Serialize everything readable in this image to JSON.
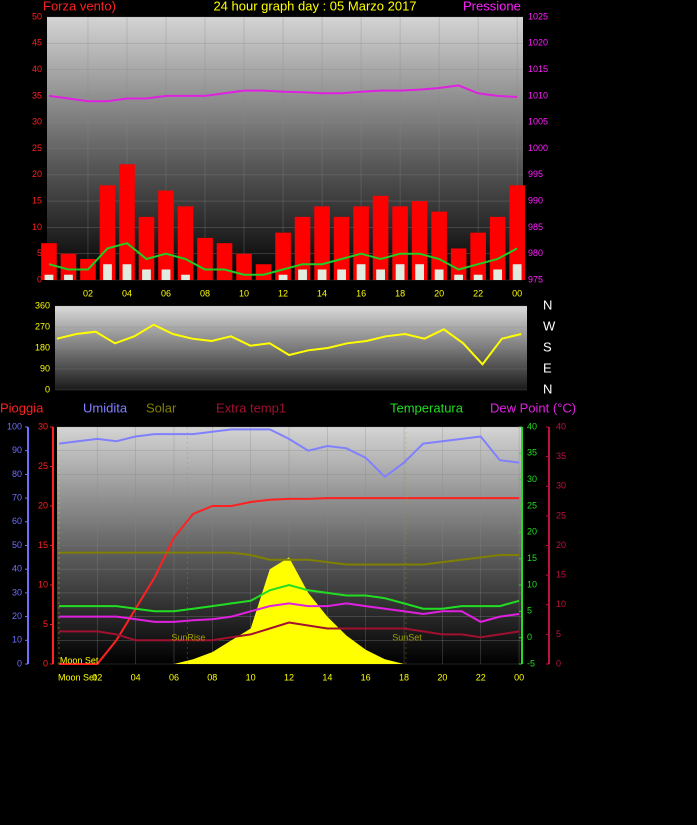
{
  "chart_data": [
    {
      "type": "wind",
      "title": "24 hour graph day : 05 Marzo 2017",
      "ylabel": "Forza vento)",
      "y2label": "Pressione",
      "ycolor": "#ff2020",
      "y2color": "#ff20ff",
      "grid": true,
      "x": [
        0,
        1,
        2,
        3,
        4,
        5,
        6,
        7,
        8,
        9,
        10,
        11,
        12,
        13,
        14,
        15,
        16,
        17,
        18,
        19,
        20,
        21,
        22,
        23,
        24
      ],
      "xlim": [
        -0.1,
        24.3
      ],
      "xticks": [
        {
          "value": 2,
          "label": "02"
        },
        {
          "value": 4,
          "label": "04"
        },
        {
          "value": 6,
          "label": "06"
        },
        {
          "value": 8,
          "label": "08"
        },
        10,
        12,
        14,
        16,
        18,
        20,
        22,
        {
          "value": 24,
          "label": "00"
        }
      ],
      "ylim": [
        0,
        50
      ],
      "yticks": [
        0,
        5,
        10,
        15,
        20,
        25,
        30,
        35,
        40,
        45,
        50
      ],
      "y2lim": [
        975,
        1025
      ],
      "y2ticks": [
        975,
        980,
        985,
        990,
        995,
        1000,
        1005,
        1010,
        1015,
        1020,
        1025
      ],
      "series": [
        {
          "kind": "bar",
          "color": "#ff0000",
          "values": [
            7,
            5,
            4,
            18,
            22,
            12,
            17,
            14,
            8,
            7,
            5,
            3,
            9,
            12,
            14,
            12,
            14,
            16,
            14,
            15,
            13,
            6,
            9,
            12,
            18
          ]
        },
        {
          "kind": "bar",
          "color": "#e0ece0",
          "values": [
            1,
            1,
            0,
            3,
            3,
            2,
            2,
            1,
            0,
            0,
            0,
            0,
            1,
            2,
            2,
            2,
            3,
            2,
            3,
            3,
            2,
            1,
            1,
            2,
            3
          ]
        },
        {
          "kind": "line",
          "color": "#22cc22",
          "values": [
            3,
            2,
            2,
            6,
            7,
            4,
            5,
            4,
            2,
            2,
            1,
            1,
            2,
            3,
            3,
            4,
            5,
            4,
            5,
            5,
            4,
            2,
            3,
            4,
            6
          ]
        },
        {
          "kind": "line",
          "color": "#e020e0",
          "axis": "y2",
          "values": [
            1010,
            1009.5,
            1009,
            1009,
            1009.5,
            1009.5,
            1010,
            1010,
            1010,
            1010.5,
            1011,
            1011,
            1010.8,
            1010.7,
            1010.5,
            1010.5,
            1010.8,
            1011,
            1011,
            1011.2,
            1011.5,
            1012,
            1010.5,
            1010,
            1009.8
          ]
        }
      ]
    },
    {
      "type": "direction",
      "ycolor": "#ffff00",
      "y2color": "#ffffff",
      "grid": true,
      "x": [
        0,
        1,
        2,
        3,
        4,
        5,
        6,
        7,
        8,
        9,
        10,
        11,
        12,
        13,
        14,
        15,
        16,
        17,
        18,
        19,
        20,
        21,
        22,
        23,
        24
      ],
      "xlim": [
        -0.1,
        24.3
      ],
      "ylim": [
        0,
        360
      ],
      "yticks": [
        0,
        90,
        180,
        270,
        360
      ],
      "y2ticks": [
        {
          "value": 0,
          "label": "N"
        },
        {
          "value": 90,
          "label": "E"
        },
        {
          "value": 180,
          "label": "S"
        },
        {
          "value": 270,
          "label": "W"
        },
        {
          "value": 360,
          "label": "N"
        }
      ],
      "series": [
        {
          "kind": "line",
          "color": "#ffff00",
          "values": [
            220,
            240,
            250,
            200,
            230,
            280,
            240,
            220,
            210,
            230,
            190,
            200,
            150,
            170,
            180,
            200,
            210,
            230,
            240,
            220,
            260,
            200,
            110,
            220,
            240
          ]
        }
      ]
    },
    {
      "type": "weather",
      "xlabel": "Moon Set",
      "grid": true,
      "x": [
        0,
        1,
        2,
        3,
        4,
        5,
        6,
        7,
        8,
        9,
        10,
        11,
        12,
        13,
        14,
        15,
        16,
        17,
        18,
        19,
        20,
        21,
        22,
        23,
        24
      ],
      "xlim": [
        -0.1,
        24.1
      ],
      "xticks": [
        {
          "value": 2,
          "label": "02"
        },
        {
          "value": 4,
          "label": "04"
        },
        {
          "value": 6,
          "label": "06"
        },
        {
          "value": 8,
          "label": "08"
        },
        10,
        12,
        14,
        16,
        18,
        20,
        22,
        {
          "value": 24,
          "label": "00"
        }
      ],
      "axes": [
        {
          "lim": [
            0,
            100
          ],
          "ticks": [
            0,
            10,
            20,
            30,
            40,
            50,
            60,
            70,
            80,
            90,
            100
          ],
          "color": "#7070ff"
        },
        {
          "lim": [
            0,
            30
          ],
          "ticks": [
            0,
            5,
            10,
            15,
            20,
            25,
            30
          ],
          "color": "#ff2020"
        },
        {
          "lim": [
            -5,
            40
          ],
          "ticks": [
            -5,
            0,
            5,
            10,
            15,
            20,
            25,
            30,
            35,
            40
          ],
          "color": "#22dd22"
        },
        {
          "lim": [
            0,
            40
          ],
          "ticks": [
            0,
            5,
            10,
            15,
            20,
            25,
            30,
            35,
            40
          ],
          "color": "#c01040"
        }
      ],
      "annotations": [
        {
          "text": "Moon Set",
          "x": 0,
          "color": "#ffff00"
        },
        {
          "text": "SunRise",
          "x": 6.7,
          "color": "#a0a000"
        },
        {
          "text": "SunSet",
          "x": 18.1,
          "color": "#a0a000"
        }
      ],
      "series": [
        {
          "kind": "area",
          "color": "#ffff00",
          "axis": 0,
          "values": [
            0,
            0,
            0,
            0,
            0,
            0,
            0,
            2,
            5,
            10,
            15,
            40,
            45,
            30,
            20,
            12,
            6,
            2,
            0,
            0,
            0,
            0,
            0,
            0,
            0
          ]
        },
        {
          "name": "Pioggia",
          "kind": "line",
          "color": "#ff2020",
          "axis": 1,
          "values": [
            0,
            0,
            0,
            3,
            7,
            11,
            16,
            19,
            20,
            20,
            20.5,
            20.8,
            20.9,
            20.9,
            21,
            21,
            21,
            21,
            21,
            21,
            21,
            21,
            21,
            21,
            21
          ]
        },
        {
          "name": "Umidita",
          "kind": "line",
          "color": "#8080ff",
          "axis": 0,
          "values": [
            93,
            94,
            95,
            94,
            96,
            97,
            97,
            97,
            98,
            99,
            99,
            99,
            95,
            90,
            92,
            91,
            87,
            79,
            85,
            93,
            94,
            95,
            96,
            86,
            85
          ]
        },
        {
          "name": "Solar",
          "kind": "line",
          "color": "#808000",
          "axis": 0,
          "values": [
            47,
            47,
            47,
            47,
            47,
            47,
            47,
            47,
            47,
            47,
            46,
            44,
            44,
            44,
            43,
            42,
            42,
            42,
            42,
            42,
            43,
            44,
            45,
            46,
            46
          ]
        },
        {
          "name": "Extra temp1",
          "kind": "line",
          "color": "#a01030",
          "axis": 3,
          "values": [
            5.5,
            5.5,
            5.5,
            5,
            4,
            4,
            4,
            4,
            4,
            4.5,
            5,
            6,
            7,
            6.5,
            6,
            6,
            6,
            6,
            6,
            5.5,
            5,
            5,
            4.5,
            5,
            5.5
          ]
        },
        {
          "name": "Temperatura",
          "kind": "line",
          "color": "#22dd22",
          "axis": 2,
          "values": [
            6,
            6,
            6,
            6,
            5.5,
            5,
            5,
            5.5,
            6,
            6.5,
            7,
            9,
            10,
            9,
            8.5,
            8,
            8,
            7.5,
            6.5,
            5.5,
            5.5,
            6,
            6,
            6,
            7
          ]
        },
        {
          "name": "Dew Point (°C)",
          "kind": "line",
          "color": "#e020e0",
          "axis": 2,
          "values": [
            4,
            4,
            4,
            4,
            3.5,
            3,
            3,
            3.3,
            3.5,
            4,
            5,
            6,
            6.5,
            6,
            6,
            6.5,
            6,
            5.5,
            5,
            4.5,
            5,
            5,
            3,
            4,
            4.5
          ]
        }
      ]
    }
  ]
}
